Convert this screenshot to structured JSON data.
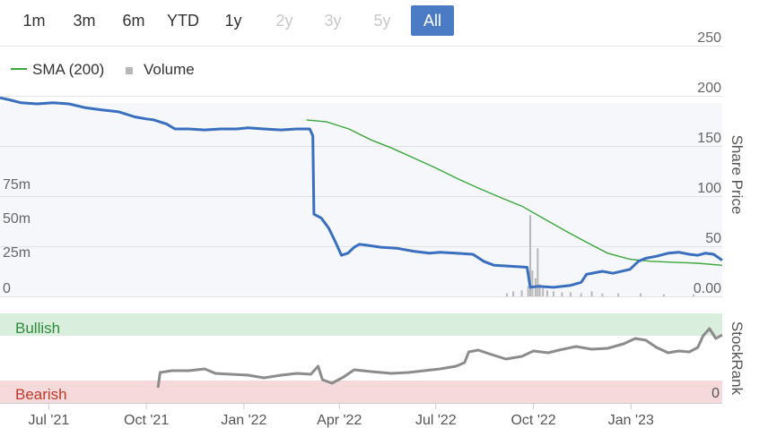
{
  "range_selector": {
    "buttons": [
      {
        "label": "1m",
        "state": "normal"
      },
      {
        "label": "3m",
        "state": "normal"
      },
      {
        "label": "6m",
        "state": "normal"
      },
      {
        "label": "YTD",
        "state": "normal"
      },
      {
        "label": "1y",
        "state": "normal"
      },
      {
        "label": "2y",
        "state": "disabled"
      },
      {
        "label": "3y",
        "state": "disabled"
      },
      {
        "label": "5y",
        "state": "disabled"
      },
      {
        "label": "All",
        "state": "active"
      }
    ]
  },
  "colors": {
    "price_line": "#3a6fbf",
    "sma_line": "#3aa83a",
    "volume_bars": "#b8b8b8",
    "stockrank_line": "#8c8c8c",
    "bullish_band": "#d9eedd",
    "bearish_band": "#f5d9db",
    "bullish_text": "#2e8b3a",
    "bearish_text": "#c0392b",
    "plot_bg": "#f5f7fb",
    "active_button": "#4a7bc4"
  },
  "chart_data": [
    {
      "type": "line",
      "title": "",
      "legend": {
        "placement": "top-left",
        "entries": [
          {
            "label": "SMA (200)",
            "color": "#3aa83a",
            "marker": "line"
          },
          {
            "label": "Volume",
            "color": "#b8b8b8",
            "marker": "square"
          }
        ]
      },
      "y_right": {
        "label": "Share Price",
        "ticks": [
          "250",
          "200",
          "150",
          "100",
          "50",
          "0.00"
        ],
        "range": [
          0,
          250
        ]
      },
      "y_left_volume": {
        "ticks": [
          "75m",
          "50m",
          "25m",
          "0"
        ],
        "range": [
          0,
          250
        ]
      },
      "x_ticks": [
        {
          "label": "Jul '21",
          "date": "2021-07-01"
        },
        {
          "label": "Oct '21",
          "date": "2021-10-01"
        },
        {
          "label": "Jan '22",
          "date": "2022-01-01"
        },
        {
          "label": "Apr '22",
          "date": "2022-04-01"
        },
        {
          "label": "Jul '22",
          "date": "2022-07-01"
        },
        {
          "label": "Oct '22",
          "date": "2022-10-01"
        },
        {
          "label": "Jan '23",
          "date": "2023-01-01"
        }
      ],
      "x_range": [
        "2021-05-16",
        "2023-03-28"
      ],
      "grid": "horizontal",
      "series": [
        {
          "name": "Share Price",
          "points": [
            [
              "2021-05-16",
              198
            ],
            [
              "2021-05-25",
              196
            ],
            [
              "2021-06-05",
              193
            ],
            [
              "2021-06-20",
              192
            ],
            [
              "2021-07-05",
              193
            ],
            [
              "2021-07-20",
              192
            ],
            [
              "2021-08-05",
              188
            ],
            [
              "2021-08-20",
              186
            ],
            [
              "2021-09-05",
              184
            ],
            [
              "2021-09-20",
              179
            ],
            [
              "2021-10-01",
              177
            ],
            [
              "2021-10-08",
              176
            ],
            [
              "2021-10-20",
              172
            ],
            [
              "2021-10-28",
              167
            ],
            [
              "2021-11-10",
              167
            ],
            [
              "2021-11-25",
              166
            ],
            [
              "2021-12-10",
              167
            ],
            [
              "2021-12-25",
              167
            ],
            [
              "2022-01-05",
              168
            ],
            [
              "2022-01-20",
              167
            ],
            [
              "2022-02-05",
              166
            ],
            [
              "2022-02-20",
              167
            ],
            [
              "2022-03-04",
              167
            ],
            [
              "2022-03-07",
              160
            ],
            [
              "2022-03-08",
              82
            ],
            [
              "2022-03-15",
              78
            ],
            [
              "2022-03-22",
              68
            ],
            [
              "2022-03-28",
              55
            ],
            [
              "2022-04-03",
              41
            ],
            [
              "2022-04-09",
              43
            ],
            [
              "2022-04-15",
              49
            ],
            [
              "2022-04-20",
              52
            ],
            [
              "2022-04-27",
              51
            ],
            [
              "2022-05-10",
              49
            ],
            [
              "2022-05-25",
              48
            ],
            [
              "2022-06-10",
              45
            ],
            [
              "2022-06-25",
              43
            ],
            [
              "2022-07-05",
              44
            ],
            [
              "2022-07-20",
              43
            ],
            [
              "2022-08-05",
              42
            ],
            [
              "2022-08-15",
              35
            ],
            [
              "2022-08-25",
              31
            ],
            [
              "2022-09-10",
              30
            ],
            [
              "2022-09-25",
              29
            ],
            [
              "2022-09-28",
              9
            ],
            [
              "2022-10-05",
              10
            ],
            [
              "2022-10-20",
              9
            ],
            [
              "2022-11-05",
              11
            ],
            [
              "2022-11-15",
              14
            ],
            [
              "2022-11-20",
              22
            ],
            [
              "2022-12-05",
              25
            ],
            [
              "2022-12-15",
              23
            ],
            [
              "2022-12-31",
              27
            ],
            [
              "2023-01-08",
              35
            ],
            [
              "2023-01-15",
              38
            ],
            [
              "2023-01-25",
              40
            ],
            [
              "2023-02-05",
              43
            ],
            [
              "2023-02-15",
              44
            ],
            [
              "2023-02-25",
              42
            ],
            [
              "2023-03-05",
              41
            ],
            [
              "2023-03-12",
              43
            ],
            [
              "2023-03-20",
              42
            ],
            [
              "2023-03-28",
              36
            ]
          ]
        },
        {
          "name": "SMA (200)",
          "points": [
            [
              "2022-03-01",
              176
            ],
            [
              "2022-03-20",
              174
            ],
            [
              "2022-04-10",
              167
            ],
            [
              "2022-05-01",
              156
            ],
            [
              "2022-05-20",
              148
            ],
            [
              "2022-06-10",
              138
            ],
            [
              "2022-07-01",
              128
            ],
            [
              "2022-07-20",
              118
            ],
            [
              "2022-08-10",
              108
            ],
            [
              "2022-08-30",
              99
            ],
            [
              "2022-09-20",
              90
            ],
            [
              "2022-10-10",
              78
            ],
            [
              "2022-10-30",
              66
            ],
            [
              "2022-11-20",
              54
            ],
            [
              "2022-12-10",
              43
            ],
            [
              "2022-12-31",
              37
            ],
            [
              "2023-01-20",
              35
            ],
            [
              "2023-02-10",
              34
            ],
            [
              "2023-03-05",
              33
            ],
            [
              "2023-03-28",
              31
            ]
          ]
        },
        {
          "name": "Volume",
          "bars": [
            [
              "2022-09-06",
              3
            ],
            [
              "2022-09-12",
              5
            ],
            [
              "2022-09-20",
              6
            ],
            [
              "2022-09-26",
              10
            ],
            [
              "2022-09-28",
              81
            ],
            [
              "2022-09-30",
              26
            ],
            [
              "2022-10-03",
              18
            ],
            [
              "2022-10-05",
              48
            ],
            [
              "2022-10-07",
              12
            ],
            [
              "2022-10-10",
              8
            ],
            [
              "2022-10-14",
              6
            ],
            [
              "2022-10-20",
              5
            ],
            [
              "2022-10-28",
              4
            ],
            [
              "2022-11-05",
              4
            ],
            [
              "2022-11-15",
              3
            ],
            [
              "2022-11-25",
              5
            ],
            [
              "2022-12-05",
              3
            ],
            [
              "2022-12-20",
              3
            ],
            [
              "2023-01-10",
              3
            ],
            [
              "2023-02-01",
              2
            ],
            [
              "2023-03-01",
              2
            ]
          ]
        }
      ]
    },
    {
      "type": "line",
      "title": "",
      "y_right": {
        "label": "StockRank",
        "ticks": [
          "0"
        ],
        "range": [
          0,
          100
        ]
      },
      "bands": [
        {
          "label": "Bullish",
          "from": 85,
          "to": 100
        },
        {
          "label": "Bearish",
          "from": 0,
          "to": 15
        }
      ],
      "series": [
        {
          "name": "StockRank",
          "points": [
            [
              "2021-10-12",
              17
            ],
            [
              "2021-10-14",
              34
            ],
            [
              "2021-10-25",
              36
            ],
            [
              "2021-11-10",
              36
            ],
            [
              "2021-11-25",
              38
            ],
            [
              "2021-12-05",
              33
            ],
            [
              "2021-12-20",
              32
            ],
            [
              "2022-01-05",
              31
            ],
            [
              "2022-01-20",
              28
            ],
            [
              "2022-02-05",
              31
            ],
            [
              "2022-02-20",
              33
            ],
            [
              "2022-03-05",
              32
            ],
            [
              "2022-03-12",
              41
            ],
            [
              "2022-03-16",
              26
            ],
            [
              "2022-03-25",
              22
            ],
            [
              "2022-04-05",
              29
            ],
            [
              "2022-04-15",
              37
            ],
            [
              "2022-05-01",
              35
            ],
            [
              "2022-05-20",
              33
            ],
            [
              "2022-06-05",
              34
            ],
            [
              "2022-06-20",
              36
            ],
            [
              "2022-07-05",
              38
            ],
            [
              "2022-07-20",
              41
            ],
            [
              "2022-07-28",
              45
            ],
            [
              "2022-08-01",
              57
            ],
            [
              "2022-08-10",
              59
            ],
            [
              "2022-08-20",
              55
            ],
            [
              "2022-09-05",
              49
            ],
            [
              "2022-09-20",
              52
            ],
            [
              "2022-10-01",
              58
            ],
            [
              "2022-10-15",
              56
            ],
            [
              "2022-10-25",
              59
            ],
            [
              "2022-11-10",
              63
            ],
            [
              "2022-11-25",
              60
            ],
            [
              "2022-12-10",
              61
            ],
            [
              "2022-12-25",
              66
            ],
            [
              "2023-01-05",
              72
            ],
            [
              "2023-01-15",
              70
            ],
            [
              "2023-01-25",
              62
            ],
            [
              "2023-02-05",
              56
            ],
            [
              "2023-02-15",
              58
            ],
            [
              "2023-02-25",
              57
            ],
            [
              "2023-03-05",
              62
            ],
            [
              "2023-03-10",
              75
            ],
            [
              "2023-03-16",
              83
            ],
            [
              "2023-03-22",
              72
            ],
            [
              "2023-03-28",
              76
            ]
          ]
        }
      ]
    }
  ]
}
